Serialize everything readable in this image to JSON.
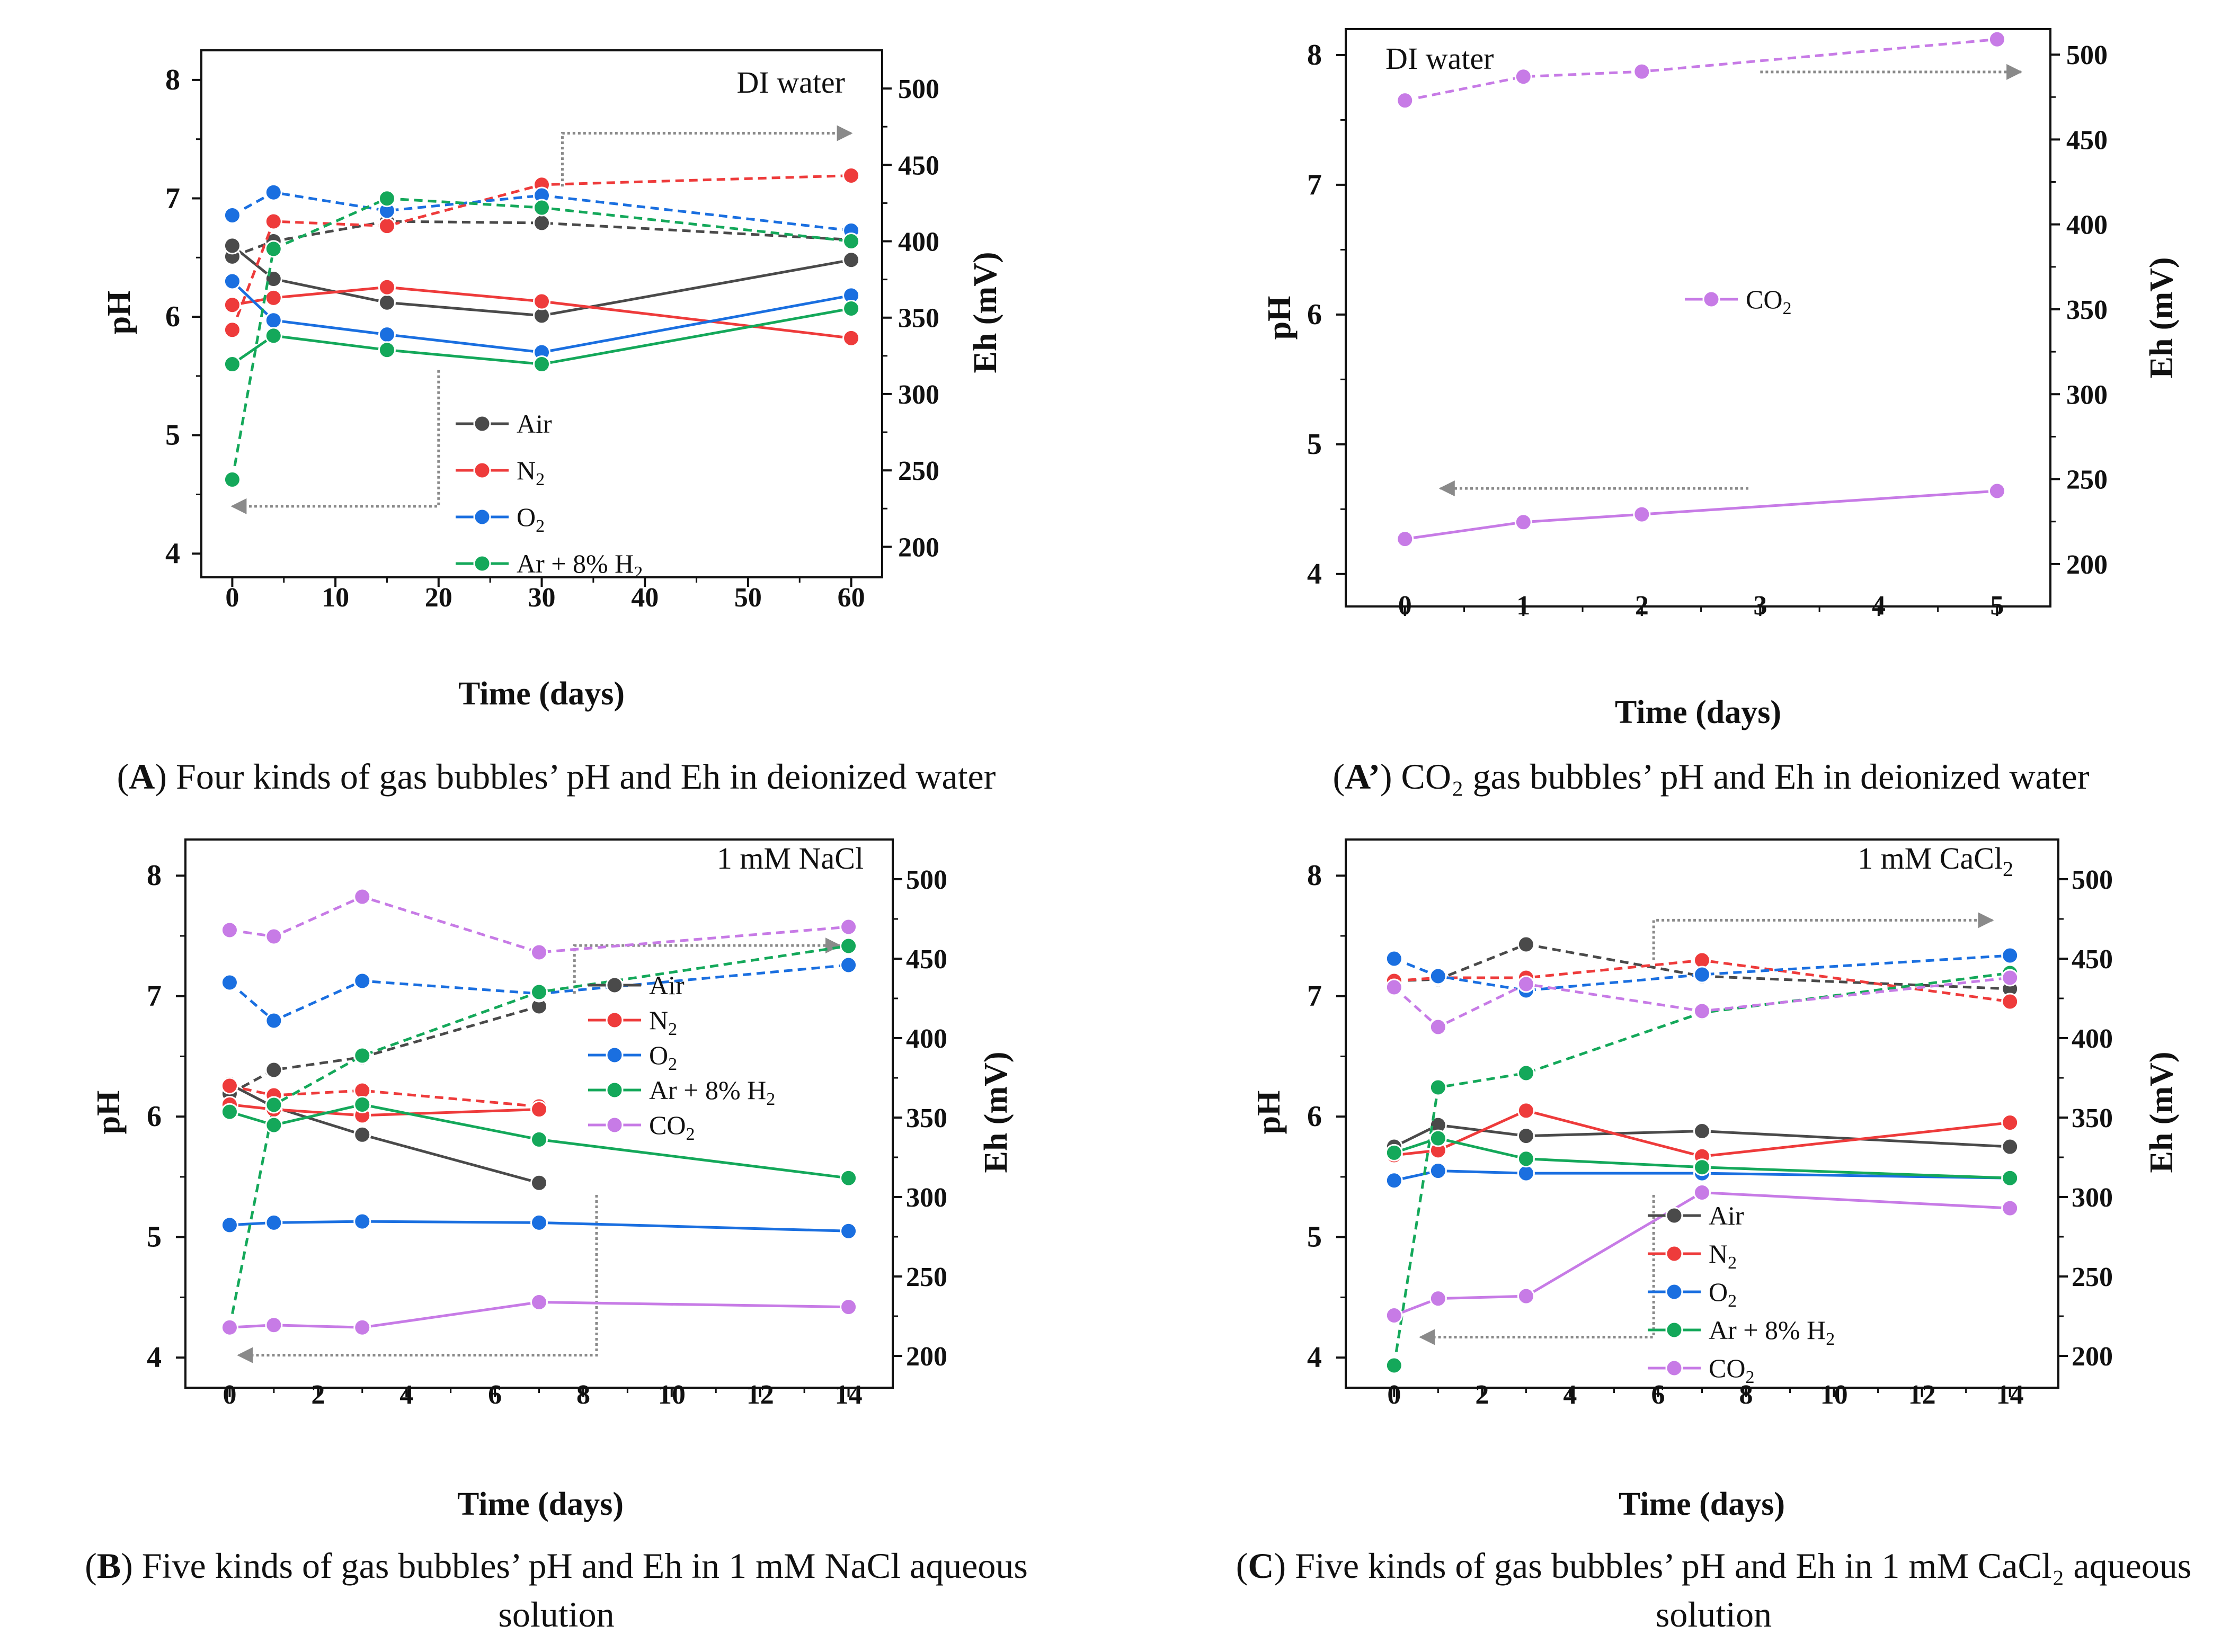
{
  "colors": {
    "Air": "#4a4a4a",
    "N2": "#ee3b3b",
    "O2": "#1a6fe0",
    "ArH2": "#14a85a",
    "CO2": "#c77be6",
    "arrow": "#8a8a8a"
  },
  "captions": [
    {
      "prefix": "(",
      "label": "A",
      "suffix": ") Four kinds of gas bubbles’ pH and Eh in deionized water"
    },
    {
      "prefix": "(",
      "label": "A’",
      "suffix": ") CO₂ gas bubbles’ pH and Eh in deionized water"
    },
    {
      "prefix": "(",
      "label": "B",
      "suffix": ") Five kinds of gas bubbles’ pH and Eh in 1 mM NaCl aqueous solution"
    },
    {
      "prefix": "(",
      "label": "C",
      "suffix": ") Five kinds of gas bubbles’ pH and Eh in 1 mM CaCl₂ aqueous solution"
    }
  ],
  "chart_data": [
    {
      "type": "line",
      "condition": "DI water",
      "xlabel": "Time (days)",
      "ylabel": "pH",
      "y2label": "Eh (mV)",
      "xlim": [
        -3,
        63
      ],
      "xticks": [
        0,
        10,
        20,
        30,
        40,
        50,
        60
      ],
      "ylim": [
        3.8,
        8.25
      ],
      "yticks": [
        4,
        5,
        6,
        7,
        8
      ],
      "y2lim": [
        180,
        525
      ],
      "y2ticks": [
        200,
        250,
        300,
        350,
        400,
        450,
        500
      ],
      "legend_position": "lower-right",
      "series": [
        {
          "name": "Air",
          "key": "Air",
          "legend": true,
          "ph": {
            "x": [
              0,
              4,
              15,
              30,
              60
            ],
            "y": [
              6.6,
              6.32,
              6.12,
              6.01,
              6.48
            ]
          },
          "eh": {
            "x": [
              0,
              4,
              15,
              30,
              60
            ],
            "y": [
              390,
              400,
              413,
              412,
              401
            ]
          }
        },
        {
          "name": "N2",
          "key": "N2",
          "legend": true,
          "ph": {
            "x": [
              0,
              4,
              15,
              30,
              60
            ],
            "y": [
              6.1,
              6.16,
              6.25,
              6.13,
              5.82
            ]
          },
          "eh": {
            "x": [
              0,
              4,
              15,
              30,
              60
            ],
            "y": [
              342,
              413,
              410,
              437,
              443
            ]
          }
        },
        {
          "name": "O2",
          "key": "O2",
          "legend": true,
          "ph": {
            "x": [
              0,
              4,
              15,
              30,
              60
            ],
            "y": [
              6.3,
              5.97,
              5.85,
              5.7,
              6.18
            ]
          },
          "eh": {
            "x": [
              0,
              4,
              15,
              30,
              60
            ],
            "y": [
              417,
              432,
              420,
              430,
              407
            ]
          }
        },
        {
          "name": "Ar + 8% H2",
          "key": "ArH2",
          "legend": true,
          "ph": {
            "x": [
              0,
              4,
              15,
              30,
              60
            ],
            "y": [
              5.6,
              5.84,
              5.72,
              5.6,
              6.07
            ]
          },
          "eh": {
            "x": [
              0,
              4,
              15,
              30,
              60
            ],
            "y": [
              244,
              395,
              428,
              422,
              400
            ]
          }
        }
      ],
      "arrows": [
        {
          "from": "ph-axis",
          "points": [
            [
              20,
              5.55
            ],
            [
              20,
              4.4
            ],
            [
              0,
              4.4
            ]
          ]
        },
        {
          "from": "eh-axis",
          "points": [
            [
              32,
              7.1
            ],
            [
              32,
              7.55
            ],
            [
              60,
              7.55
            ]
          ]
        }
      ]
    },
    {
      "type": "line",
      "condition": "DI water",
      "xlabel": "Time (days)",
      "ylabel": "pH",
      "y2label": "Eh (mV)",
      "xlim": [
        -0.5,
        5.45
      ],
      "xticks": [
        0,
        1,
        2,
        3,
        4,
        5
      ],
      "ylim": [
        3.75,
        8.2
      ],
      "yticks": [
        4,
        5,
        6,
        7,
        8
      ],
      "y2lim": [
        175,
        515
      ],
      "y2ticks": [
        200,
        250,
        300,
        350,
        400,
        450,
        500
      ],
      "legend_position": "center-right",
      "series": [
        {
          "name": "CO2",
          "key": "CO2",
          "legend": true,
          "ph": {
            "x": [
              0,
              1,
              2,
              5
            ],
            "y": [
              4.27,
              4.4,
              4.46,
              4.64
            ]
          },
          "eh": {
            "x": [
              0,
              1,
              2,
              5
            ],
            "y": [
              473,
              487,
              490,
              509
            ]
          }
        }
      ],
      "arrows": [
        {
          "from": "ph-axis",
          "points": [
            [
              2.9,
              4.66
            ],
            [
              0.3,
              4.66
            ]
          ]
        },
        {
          "from": "eh-axis",
          "points": [
            [
              3.0,
              7.87
            ],
            [
              5.2,
              7.87
            ]
          ]
        }
      ]
    },
    {
      "type": "line",
      "condition": "1 mM NaCl",
      "xlabel": "Time (days)",
      "ylabel": "pH",
      "y2label": "Eh (mV)",
      "xlim": [
        -1,
        15
      ],
      "xticks": [
        0,
        2,
        4,
        6,
        8,
        10,
        12,
        14
      ],
      "ylim": [
        3.75,
        8.3
      ],
      "yticks": [
        4,
        5,
        6,
        7,
        8
      ],
      "y2lim": [
        180,
        525
      ],
      "y2ticks": [
        200,
        250,
        300,
        350,
        400,
        450,
        500
      ],
      "legend_position": "center-right",
      "series": [
        {
          "name": "Air",
          "key": "Air",
          "legend": true,
          "ph": {
            "x": [
              0,
              1,
              3,
              7
            ],
            "y": [
              6.27,
              6.08,
              5.85,
              5.45
            ]
          },
          "eh": {
            "x": [
              0,
              1,
              3,
              7
            ],
            "y": [
              365,
              380,
              388,
              420
            ]
          }
        },
        {
          "name": "N2",
          "key": "N2",
          "legend": true,
          "ph": {
            "x": [
              0,
              1,
              3,
              7
            ],
            "y": [
              6.1,
              6.06,
              6.01,
              6.06
            ]
          },
          "eh": {
            "x": [
              0,
              1,
              3,
              7
            ],
            "y": [
              370,
              364,
              367,
              357
            ]
          }
        },
        {
          "name": "O2",
          "key": "O2",
          "legend": true,
          "ph": {
            "x": [
              0,
              1,
              3,
              7,
              14
            ],
            "y": [
              5.1,
              5.12,
              5.13,
              5.12,
              5.05
            ]
          },
          "eh": {
            "x": [
              0,
              1,
              3,
              7,
              14
            ],
            "y": [
              435,
              411,
              436,
              428,
              446
            ]
          }
        },
        {
          "name": "Ar + 8% H2",
          "key": "ArH2",
          "legend": true,
          "ph": {
            "x": [
              0,
              1,
              3,
              7,
              14
            ],
            "y": [
              6.04,
              5.93,
              6.1,
              5.81,
              5.49
            ]
          },
          "eh": {
            "x": [
              0,
              1,
              3,
              7,
              14
            ],
            "y": [
              218,
              358,
              389,
              429,
              458
            ]
          }
        },
        {
          "name": "CO2",
          "key": "CO2",
          "legend": true,
          "ph": {
            "x": [
              0,
              1,
              3,
              7,
              14
            ],
            "y": [
              4.25,
              4.27,
              4.25,
              4.46,
              4.42
            ]
          },
          "eh": {
            "x": [
              0,
              1,
              3,
              7,
              14
            ],
            "y": [
              468,
              464,
              489,
              454,
              470
            ]
          }
        }
      ],
      "arrows": [
        {
          "from": "ph-axis",
          "points": [
            [
              8.3,
              5.35
            ],
            [
              8.3,
              4.02
            ],
            [
              0.2,
              4.02
            ]
          ]
        },
        {
          "from": "eh-axis",
          "points": [
            [
              7.8,
              7.02
            ],
            [
              7.8,
              7.42
            ],
            [
              13.8,
              7.42
            ]
          ]
        }
      ]
    },
    {
      "type": "line",
      "condition": "1 mM CaCl2",
      "xlabel": "Time (days)",
      "ylabel": "pH",
      "y2label": "Eh (mV)",
      "xlim": [
        -1.1,
        15.1
      ],
      "xticks": [
        0,
        2,
        4,
        6,
        8,
        10,
        12,
        14
      ],
      "ylim": [
        3.75,
        8.3
      ],
      "yticks": [
        4,
        5,
        6,
        7,
        8
      ],
      "y2lim": [
        180,
        525
      ],
      "y2ticks": [
        200,
        250,
        300,
        350,
        400,
        450,
        500
      ],
      "legend_position": "lower-right",
      "series": [
        {
          "name": "Air",
          "key": "Air",
          "legend": true,
          "ph": {
            "x": [
              0,
              1,
              3,
              7,
              14
            ],
            "y": [
              5.75,
              5.93,
              5.84,
              5.88,
              5.75
            ]
          },
          "eh": {
            "x": [
              0,
              1,
              3,
              7,
              14
            ],
            "y": [
              436,
              437,
              459,
              439,
              431
            ]
          }
        },
        {
          "name": "N2",
          "key": "N2",
          "legend": true,
          "ph": {
            "x": [
              0,
              1,
              3,
              7,
              14
            ],
            "y": [
              5.68,
              5.72,
              6.05,
              5.67,
              5.95
            ]
          },
          "eh": {
            "x": [
              0,
              1,
              3,
              7,
              14
            ],
            "y": [
              436,
              438,
              438,
              449,
              423
            ]
          }
        },
        {
          "name": "O2",
          "key": "O2",
          "legend": true,
          "ph": {
            "x": [
              0,
              1,
              3,
              7,
              14
            ],
            "y": [
              5.47,
              5.55,
              5.53,
              5.53,
              5.49
            ]
          },
          "eh": {
            "x": [
              0,
              1,
              3,
              7,
              14
            ],
            "y": [
              450,
              439,
              430,
              440,
              452
            ]
          }
        },
        {
          "name": "Ar + 8% H2",
          "key": "ArH2",
          "legend": true,
          "ph": {
            "x": [
              0,
              1,
              3,
              7,
              14
            ],
            "y": [
              5.7,
              5.82,
              5.65,
              5.58,
              5.49
            ]
          },
          "eh": {
            "x": [
              0,
              1,
              3,
              7,
              14
            ],
            "y": [
              194,
              369,
              378,
              416,
              441
            ]
          }
        },
        {
          "name": "CO2",
          "key": "CO2",
          "legend": true,
          "ph": {
            "x": [
              0,
              1,
              3,
              7,
              14
            ],
            "y": [
              4.35,
              4.49,
              4.51,
              5.37,
              5.24
            ]
          },
          "eh": {
            "x": [
              0,
              1,
              3,
              7,
              14
            ],
            "y": [
              432,
              407,
              434,
              417,
              438
            ]
          }
        }
      ],
      "arrows": [
        {
          "from": "ph-axis",
          "points": [
            [
              5.9,
              5.35
            ],
            [
              5.9,
              4.17
            ],
            [
              0.6,
              4.17
            ]
          ]
        },
        {
          "from": "eh-axis",
          "points": [
            [
              5.9,
              7.3
            ],
            [
              5.9,
              7.63
            ],
            [
              13.6,
              7.63
            ]
          ]
        }
      ]
    }
  ]
}
